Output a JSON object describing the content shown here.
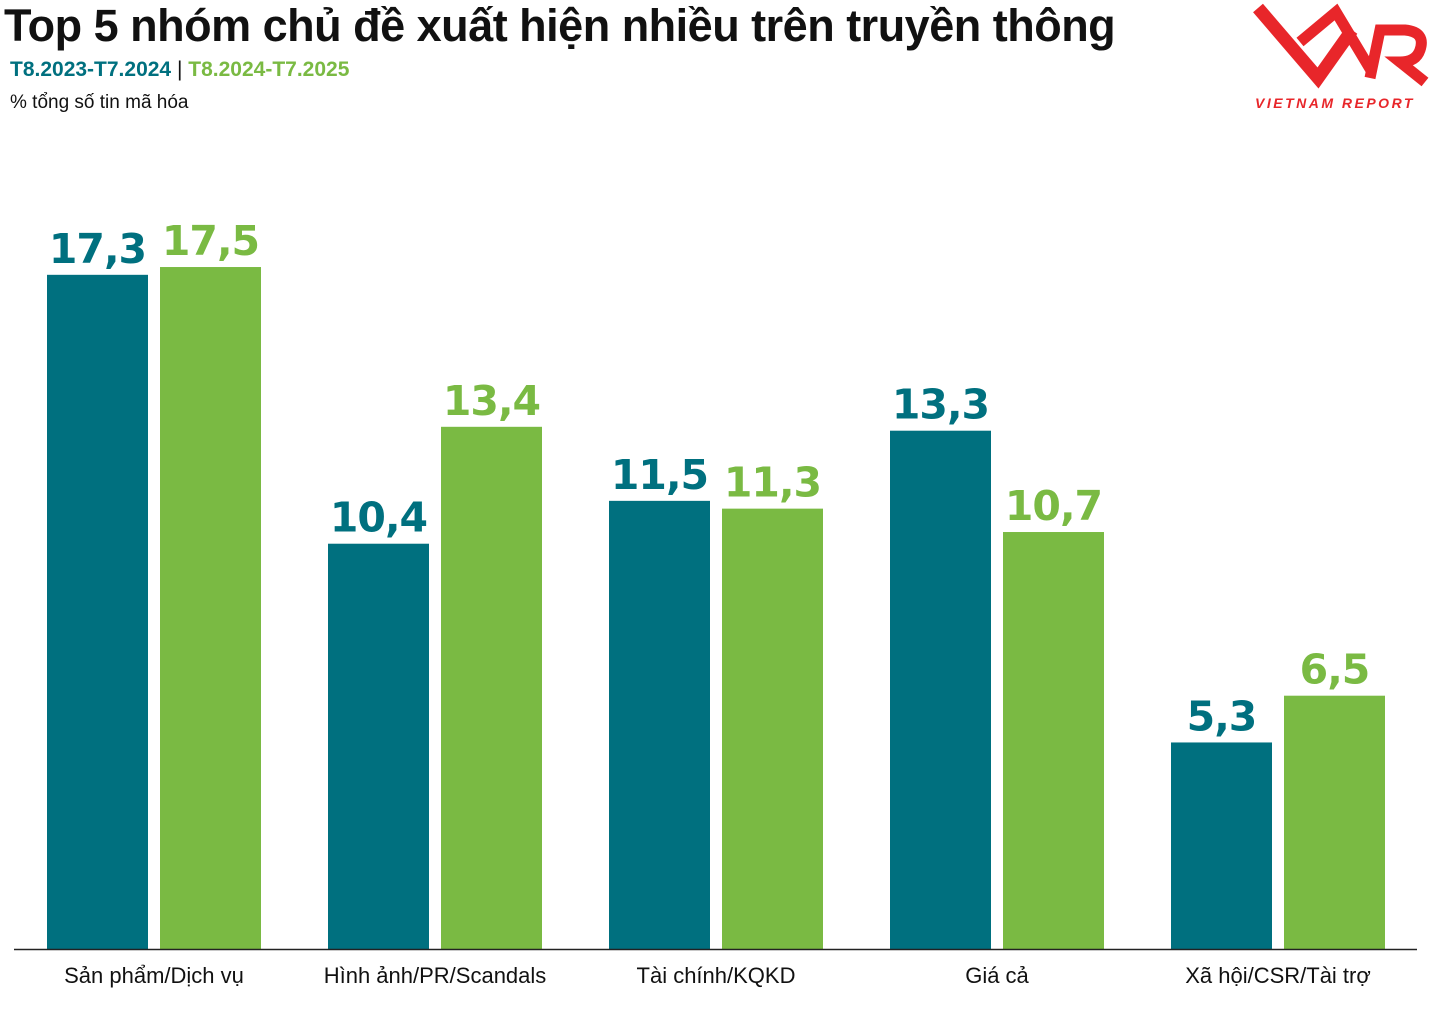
{
  "header": {
    "title": "Top 5 nhóm chủ đề xuất hiện nhiều trên truyền thông",
    "period1": "T8.2023-T7.2024",
    "separator": "|",
    "period2": "T8.2024-T7.2025",
    "unit": "% tổng số tin mã hóa"
  },
  "logo": {
    "mark": "VNR",
    "text": "VIETNAM REPORT",
    "color": "#e8262a"
  },
  "colors": {
    "series1": "#00707f",
    "series2": "#7aba43"
  },
  "chart_data": {
    "type": "bar",
    "categories": [
      "Sản phẩm/Dịch vụ",
      "Hình ảnh/PR/Scandals",
      "Tài chính/KQKD",
      "Giá cả",
      "Xã hội/CSR/Tài trợ"
    ],
    "series": [
      {
        "name": "T8.2023-T7.2024",
        "values": [
          17.3,
          10.4,
          11.5,
          13.3,
          5.3
        ],
        "labels": [
          "17,3",
          "10,4",
          "11,5",
          "13,3",
          "5,3"
        ]
      },
      {
        "name": "T8.2024-T7.2025",
        "values": [
          17.5,
          13.4,
          11.3,
          10.7,
          6.5
        ],
        "labels": [
          "17,5",
          "13,4",
          "11,3",
          "10,7",
          "6,5"
        ]
      }
    ],
    "title": "Top 5 nhóm chủ đề xuất hiện nhiều trên truyền thông",
    "ylabel": "% tổng số tin mã hóa",
    "ylim": [
      0,
      17.5
    ],
    "grid": false,
    "legend": "top-left"
  }
}
